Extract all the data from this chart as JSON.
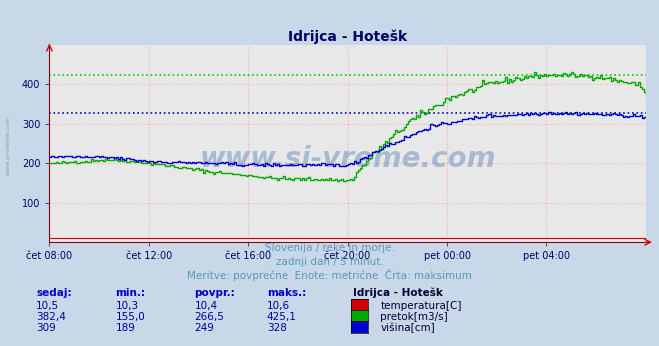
{
  "title": "Idrijca - Hotešk",
  "subtitle_lines": [
    "Slovenija / reke in morje.",
    "zadnji dan / 5 minut.",
    "Meritve: povprečne  Enote: metrične  Črta: maksimum"
  ],
  "xlabel_ticks": [
    "čet 08:00",
    "čet 12:00",
    "čet 16:00",
    "čet 20:00",
    "pet 00:00",
    "pet 04:00"
  ],
  "xlabel_tick_positions": [
    0,
    48,
    96,
    144,
    192,
    240
  ],
  "n_points": 289,
  "ylim": [
    0,
    500
  ],
  "yticks": [
    100,
    200,
    300,
    400
  ],
  "xlim": [
    0,
    288
  ],
  "bg_color": "#c8d8e8",
  "plot_bg_color": "#e8e8e8",
  "grid_color": "#ffaaaa",
  "max_line_color_green": "#00cc00",
  "max_line_color_blue": "#0000cc",
  "max_green": 425.1,
  "max_blue": 328,
  "temp_color": "#cc0000",
  "flow_color": "#00aa00",
  "height_color": "#0000cc",
  "watermark_color": "#3366aa",
  "watermark_alpha": 0.35,
  "title_color": "#000066",
  "subtitle_color": "#5599bb",
  "table_header_color": "#0000cc",
  "table_value_color": "#000099",
  "legend_title": "Idrijca - Hotešk",
  "legend_items": [
    {
      "label": "temperatura[C]",
      "color": "#cc0000"
    },
    {
      "label": "pretok[m3/s]",
      "color": "#00aa00"
    },
    {
      "label": "višina[cm]",
      "color": "#0000cc"
    }
  ],
  "table_col_labels": [
    "sedaj:",
    "min.:",
    "povpr.:",
    "maks.:"
  ],
  "watermark": "www.si-vreme.com",
  "axis_color": "#cc0000",
  "tick_color": "#000066",
  "side_watermark": "www.si-vreme.com",
  "side_watermark_color": "#8899aa"
}
